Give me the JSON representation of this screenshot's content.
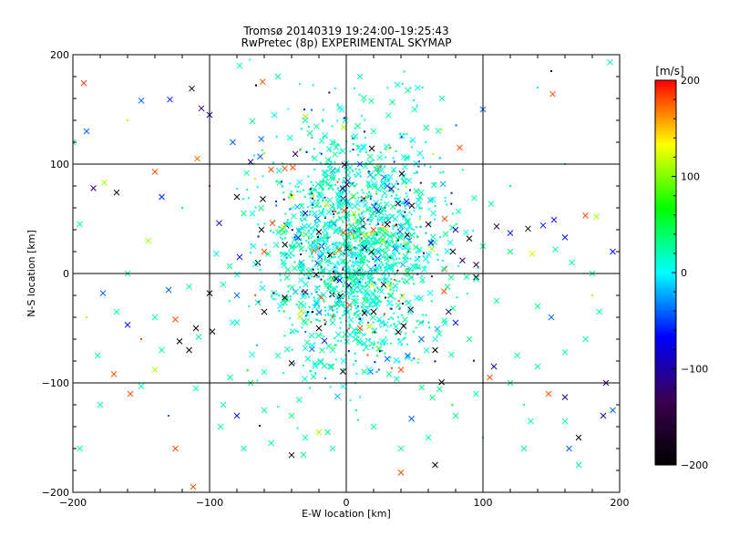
{
  "chart_data": {
    "type": "scatter",
    "title": "Tromsø 20140319 19:24:00–19:25:43",
    "subtitle": "RwPretec (8p) EXPERIMENTAL SKYMAP",
    "xlabel": "E-W location [km]",
    "ylabel": "N-S location [km]",
    "xlim": [
      -200,
      200
    ],
    "ylim": [
      -200,
      200
    ],
    "xticks": [
      -200,
      -100,
      0,
      100,
      200
    ],
    "yticks": [
      -200,
      -100,
      0,
      100,
      200
    ],
    "grid": true,
    "colorbar": {
      "label": "[m/s]",
      "min": -200,
      "max": 200,
      "ticks": [
        -200,
        -100,
        0,
        100,
        200
      ],
      "colormap": [
        "#000000",
        "#3a0050",
        "#0000ff",
        "#00ffff",
        "#00ff00",
        "#ffff00",
        "#ff0000"
      ]
    },
    "marker_styles": {
      "cross": "x",
      "dot": "small dot"
    },
    "points": [
      {
        "x": -192,
        "y": 174,
        "v": 190,
        "m": "x"
      },
      {
        "x": -113,
        "y": 169,
        "v": -180,
        "m": "x"
      },
      {
        "x": -106,
        "y": 151,
        "v": -120,
        "m": "x"
      },
      {
        "x": -100,
        "y": 145,
        "v": -110,
        "m": "x"
      },
      {
        "x": 151,
        "y": 164,
        "v": 180,
        "m": "x"
      },
      {
        "x": 193,
        "y": 193,
        "v": 20,
        "m": "x"
      },
      {
        "x": -78,
        "y": 190,
        "v": 20,
        "m": "x"
      },
      {
        "x": -66,
        "y": 172,
        "v": -190,
        "m": "."
      },
      {
        "x": -185,
        "y": 78,
        "v": -120,
        "m": "x"
      },
      {
        "x": -177,
        "y": 83,
        "v": 110,
        "m": "x"
      },
      {
        "x": -168,
        "y": 74,
        "v": -190,
        "m": "x"
      },
      {
        "x": -140,
        "y": 93,
        "v": 180,
        "m": "x"
      },
      {
        "x": -135,
        "y": 70,
        "v": -60,
        "m": "x"
      },
      {
        "x": -109,
        "y": 105,
        "v": 170,
        "m": "x"
      },
      {
        "x": -150,
        "y": 158,
        "v": -40,
        "m": "x"
      },
      {
        "x": -129,
        "y": 159,
        "v": -60,
        "m": "x"
      },
      {
        "x": -83,
        "y": 120,
        "v": -40,
        "m": "x"
      },
      {
        "x": -70,
        "y": 102,
        "v": -120,
        "m": "x"
      },
      {
        "x": -55,
        "y": 95,
        "v": 180,
        "m": "x"
      },
      {
        "x": -45,
        "y": 96,
        "v": 180,
        "m": "x"
      },
      {
        "x": -80,
        "y": 70,
        "v": -190,
        "m": "x"
      },
      {
        "x": -61,
        "y": 68,
        "v": -190,
        "m": "x"
      },
      {
        "x": -93,
        "y": 46,
        "v": -80,
        "m": "x"
      },
      {
        "x": -75,
        "y": 55,
        "v": 30,
        "m": "x"
      },
      {
        "x": -62,
        "y": 40,
        "v": -190,
        "m": "x"
      },
      {
        "x": -54,
        "y": 46,
        "v": 180,
        "m": "x"
      },
      {
        "x": -60,
        "y": 20,
        "v": 180,
        "m": "x"
      },
      {
        "x": -95,
        "y": 18,
        "v": 10,
        "m": "x"
      },
      {
        "x": -78,
        "y": 15,
        "v": -60,
        "m": "x"
      },
      {
        "x": -68,
        "y": 25,
        "v": 0,
        "m": "x"
      },
      {
        "x": -30,
        "y": 55,
        "v": -80,
        "m": "x"
      },
      {
        "x": -20,
        "y": 38,
        "v": -190,
        "m": "x"
      },
      {
        "x": 48,
        "y": 62,
        "v": -190,
        "m": "x"
      },
      {
        "x": 60,
        "y": 45,
        "v": -190,
        "m": "x"
      },
      {
        "x": 72,
        "y": 50,
        "v": 180,
        "m": "x"
      },
      {
        "x": 80,
        "y": 40,
        "v": -100,
        "m": "x"
      },
      {
        "x": 90,
        "y": 32,
        "v": -190,
        "m": "x"
      },
      {
        "x": 110,
        "y": 43,
        "v": -120,
        "m": "x"
      },
      {
        "x": 120,
        "y": 37,
        "v": -60,
        "m": "x"
      },
      {
        "x": 133,
        "y": 41,
        "v": -190,
        "m": "x"
      },
      {
        "x": 144,
        "y": 44,
        "v": -60,
        "m": "x"
      },
      {
        "x": 152,
        "y": 49,
        "v": -80,
        "m": "x"
      },
      {
        "x": 160,
        "y": 33,
        "v": -60,
        "m": "x"
      },
      {
        "x": 175,
        "y": 53,
        "v": 180,
        "m": "x"
      },
      {
        "x": 183,
        "y": 52,
        "v": 110,
        "m": "x"
      },
      {
        "x": 100,
        "y": 25,
        "v": 30,
        "m": "x"
      },
      {
        "x": 120,
        "y": 20,
        "v": 40,
        "m": "x"
      },
      {
        "x": 136,
        "y": 18,
        "v": 120,
        "m": "x"
      },
      {
        "x": 153,
        "y": 22,
        "v": 20,
        "m": "x"
      },
      {
        "x": 78,
        "y": 20,
        "v": -190,
        "m": "x"
      },
      {
        "x": 85,
        "y": 12,
        "v": -110,
        "m": "x"
      },
      {
        "x": 95,
        "y": 8,
        "v": -150,
        "m": "x"
      },
      {
        "x": 62,
        "y": 28,
        "v": -60,
        "m": "x"
      },
      {
        "x": 48,
        "y": 35,
        "v": 30,
        "m": "x"
      },
      {
        "x": 30,
        "y": 45,
        "v": -190,
        "m": "x"
      },
      {
        "x": 22,
        "y": 58,
        "v": -40,
        "m": "x"
      },
      {
        "x": -40,
        "y": 70,
        "v": 120,
        "m": "x"
      },
      {
        "x": -178,
        "y": -18,
        "v": -40,
        "m": "x"
      },
      {
        "x": -168,
        "y": -35,
        "v": 20,
        "m": "x"
      },
      {
        "x": -160,
        "y": -47,
        "v": -60,
        "m": "x"
      },
      {
        "x": -182,
        "y": -75,
        "v": 20,
        "m": "x"
      },
      {
        "x": -170,
        "y": -92,
        "v": 180,
        "m": "x"
      },
      {
        "x": -150,
        "y": -103,
        "v": 20,
        "m": "x"
      },
      {
        "x": -158,
        "y": -110,
        "v": 180,
        "m": "x"
      },
      {
        "x": -140,
        "y": -88,
        "v": 110,
        "m": "x"
      },
      {
        "x": -135,
        "y": -70,
        "v": 20,
        "m": "x"
      },
      {
        "x": -122,
        "y": -62,
        "v": -190,
        "m": "x"
      },
      {
        "x": -115,
        "y": -70,
        "v": -190,
        "m": "x"
      },
      {
        "x": -108,
        "y": -58,
        "v": 20,
        "m": "x"
      },
      {
        "x": -110,
        "y": -50,
        "v": -190,
        "m": "x"
      },
      {
        "x": -98,
        "y": -53,
        "v": -190,
        "m": "x"
      },
      {
        "x": -125,
        "y": -42,
        "v": 180,
        "m": "x"
      },
      {
        "x": -140,
        "y": -40,
        "v": 20,
        "m": "x"
      },
      {
        "x": -130,
        "y": -15,
        "v": -40,
        "m": "x"
      },
      {
        "x": -115,
        "y": -12,
        "v": 20,
        "m": "x"
      },
      {
        "x": -100,
        "y": -18,
        "v": -190,
        "m": "x"
      },
      {
        "x": -90,
        "y": -10,
        "v": 20,
        "m": "x"
      },
      {
        "x": -80,
        "y": -20,
        "v": -40,
        "m": "x"
      },
      {
        "x": -60,
        "y": -35,
        "v": -190,
        "m": "x"
      },
      {
        "x": -45,
        "y": -22,
        "v": -190,
        "m": "x"
      },
      {
        "x": -30,
        "y": -45,
        "v": 30,
        "m": "x"
      },
      {
        "x": -20,
        "y": -50,
        "v": -190,
        "m": "x"
      },
      {
        "x": -10,
        "y": -45,
        "v": 20,
        "m": "x"
      },
      {
        "x": 10,
        "y": -50,
        "v": 180,
        "m": "x"
      },
      {
        "x": 20,
        "y": -35,
        "v": -190,
        "m": "x"
      },
      {
        "x": 42,
        "y": -48,
        "v": -190,
        "m": "x"
      },
      {
        "x": 55,
        "y": -60,
        "v": -40,
        "m": "x"
      },
      {
        "x": 68,
        "y": -55,
        "v": 20,
        "m": "x"
      },
      {
        "x": 80,
        "y": -45,
        "v": -60,
        "m": "x"
      },
      {
        "x": 90,
        "y": -60,
        "v": 30,
        "m": "x"
      },
      {
        "x": 65,
        "y": -70,
        "v": -190,
        "m": "x"
      },
      {
        "x": 45,
        "y": -75,
        "v": -40,
        "m": "x"
      },
      {
        "x": 40,
        "y": -88,
        "v": 180,
        "m": "x"
      },
      {
        "x": 30,
        "y": -78,
        "v": -40,
        "m": "x"
      },
      {
        "x": -40,
        "y": -82,
        "v": -190,
        "m": "x"
      },
      {
        "x": -50,
        "y": -75,
        "v": 20,
        "m": "x"
      },
      {
        "x": -60,
        "y": -90,
        "v": 20,
        "m": "x"
      },
      {
        "x": -70,
        "y": -100,
        "v": 40,
        "m": "x"
      },
      {
        "x": -85,
        "y": -95,
        "v": 30,
        "m": "x"
      },
      {
        "x": -110,
        "y": -105,
        "v": 20,
        "m": "x"
      },
      {
        "x": -90,
        "y": -120,
        "v": 20,
        "m": "x"
      },
      {
        "x": -80,
        "y": -130,
        "v": -60,
        "m": "x"
      },
      {
        "x": -60,
        "y": -125,
        "v": 20,
        "m": "x"
      },
      {
        "x": -40,
        "y": -130,
        "v": 30,
        "m": "x"
      },
      {
        "x": -30,
        "y": -150,
        "v": 20,
        "m": "x"
      },
      {
        "x": -20,
        "y": -145,
        "v": 110,
        "m": "x"
      },
      {
        "x": -10,
        "y": -160,
        "v": 20,
        "m": "x"
      },
      {
        "x": -40,
        "y": -166,
        "v": -190,
        "m": "x"
      },
      {
        "x": -55,
        "y": -155,
        "v": 20,
        "m": "x"
      },
      {
        "x": -75,
        "y": -160,
        "v": 20,
        "m": "x"
      },
      {
        "x": -92,
        "y": -140,
        "v": 20,
        "m": "x"
      },
      {
        "x": -125,
        "y": -160,
        "v": 180,
        "m": "x"
      },
      {
        "x": -112,
        "y": -195,
        "v": 180,
        "m": "x"
      },
      {
        "x": -195,
        "y": -160,
        "v": 20,
        "m": "x"
      },
      {
        "x": -180,
        "y": -120,
        "v": 20,
        "m": "x"
      },
      {
        "x": 20,
        "y": -140,
        "v": 20,
        "m": "x"
      },
      {
        "x": 40,
        "y": -160,
        "v": 20,
        "m": "x"
      },
      {
        "x": 40,
        "y": -182,
        "v": 180,
        "m": "x"
      },
      {
        "x": 65,
        "y": -175,
        "v": -190,
        "m": "x"
      },
      {
        "x": 60,
        "y": -150,
        "v": 20,
        "m": "x"
      },
      {
        "x": 80,
        "y": -130,
        "v": 30,
        "m": "x"
      },
      {
        "x": 95,
        "y": -110,
        "v": 20,
        "m": "x"
      },
      {
        "x": 105,
        "y": -95,
        "v": 180,
        "m": "x"
      },
      {
        "x": 120,
        "y": -100,
        "v": 30,
        "m": "x"
      },
      {
        "x": 108,
        "y": -85,
        "v": -100,
        "m": "x"
      },
      {
        "x": 125,
        "y": -75,
        "v": 20,
        "m": "x"
      },
      {
        "x": 140,
        "y": -85,
        "v": 20,
        "m": "x"
      },
      {
        "x": 160,
        "y": -72,
        "v": 20,
        "m": "x"
      },
      {
        "x": 175,
        "y": -60,
        "v": 20,
        "m": "x"
      },
      {
        "x": 185,
        "y": -35,
        "v": 20,
        "m": "x"
      },
      {
        "x": 190,
        "y": -100,
        "v": -120,
        "m": "x"
      },
      {
        "x": 160,
        "y": -113,
        "v": -110,
        "m": "x"
      },
      {
        "x": 148,
        "y": -110,
        "v": 180,
        "m": "x"
      },
      {
        "x": 135,
        "y": -135,
        "v": 20,
        "m": "x"
      },
      {
        "x": 160,
        "y": -135,
        "v": 20,
        "m": "x"
      },
      {
        "x": 170,
        "y": -150,
        "v": -190,
        "m": "x"
      },
      {
        "x": 163,
        "y": -160,
        "v": -40,
        "m": "x"
      },
      {
        "x": 188,
        "y": -130,
        "v": -110,
        "m": "x"
      },
      {
        "x": 195,
        "y": -125,
        "v": -40,
        "m": "x"
      },
      {
        "x": 170,
        "y": -175,
        "v": 20,
        "m": "x"
      },
      {
        "x": 130,
        "y": -160,
        "v": 20,
        "m": "x"
      },
      {
        "x": 140,
        "y": -30,
        "v": 30,
        "m": "x"
      },
      {
        "x": 150,
        "y": -40,
        "v": -40,
        "m": "x"
      },
      {
        "x": 110,
        "y": -25,
        "v": 30,
        "m": "x"
      },
      {
        "x": 95,
        "y": -5,
        "v": 20,
        "m": "x"
      },
      {
        "x": 30,
        "y": 80,
        "v": -40,
        "m": "x"
      },
      {
        "x": 10,
        "y": 100,
        "v": -40,
        "m": "x"
      },
      {
        "x": -10,
        "y": 120,
        "v": 20,
        "m": "x"
      },
      {
        "x": 20,
        "y": 130,
        "v": 20,
        "m": "x"
      },
      {
        "x": -30,
        "y": 140,
        "v": 20,
        "m": "x"
      },
      {
        "x": 50,
        "y": 150,
        "v": 20,
        "m": "x"
      },
      {
        "x": 70,
        "y": 160,
        "v": 20,
        "m": "x"
      },
      {
        "x": 83,
        "y": 115,
        "v": 180,
        "m": "x"
      },
      {
        "x": 100,
        "y": 150,
        "v": -40,
        "m": "x"
      },
      {
        "x": -50,
        "y": 180,
        "v": 20,
        "m": "x"
      },
      {
        "x": 10,
        "y": 180,
        "v": 20,
        "m": "x"
      },
      {
        "x": -190,
        "y": 130,
        "v": -40,
        "m": "x"
      },
      {
        "x": -200,
        "y": 120,
        "v": 20,
        "m": "x"
      },
      {
        "x": -160,
        "y": 0,
        "v": 20,
        "m": "x"
      },
      {
        "x": -145,
        "y": 30,
        "v": 110,
        "m": "x"
      },
      {
        "x": -195,
        "y": 45,
        "v": 20,
        "m": "x"
      },
      {
        "x": 180,
        "y": 0,
        "v": 20,
        "m": "x"
      },
      {
        "x": 165,
        "y": 10,
        "v": 20,
        "m": "x"
      },
      {
        "x": 195,
        "y": 20,
        "v": -60,
        "m": "x"
      },
      {
        "x": -190,
        "y": -40,
        "v": 110,
        "m": "."
      },
      {
        "x": -150,
        "y": -60,
        "v": 180,
        "m": "."
      },
      {
        "x": -120,
        "y": 60,
        "v": 20,
        "m": "."
      },
      {
        "x": -100,
        "y": 80,
        "v": 180,
        "m": "."
      },
      {
        "x": -60,
        "y": 110,
        "v": 110,
        "m": "."
      },
      {
        "x": 120,
        "y": 80,
        "v": 20,
        "m": "."
      },
      {
        "x": 160,
        "y": 100,
        "v": 20,
        "m": "."
      },
      {
        "x": 180,
        "y": -20,
        "v": 110,
        "m": "."
      },
      {
        "x": 130,
        "y": -120,
        "v": 20,
        "m": "."
      },
      {
        "x": -130,
        "y": -130,
        "v": -40,
        "m": "."
      },
      {
        "x": 100,
        "y": -150,
        "v": 20,
        "m": "."
      },
      {
        "x": 140,
        "y": 170,
        "v": 20,
        "m": "."
      },
      {
        "x": -160,
        "y": 140,
        "v": 110,
        "m": "."
      },
      {
        "x": 150,
        "y": 185,
        "v": -190,
        "m": "."
      }
    ],
    "dense_cloud": {
      "note": "",
      "cx": 5,
      "cy": 20,
      "sx": 32,
      "sy": 55,
      "count": 1800,
      "palette_values": [
        0,
        10,
        20,
        30,
        -20,
        -40,
        60,
        110,
        -60,
        180,
        -190,
        -120
      ]
    }
  }
}
